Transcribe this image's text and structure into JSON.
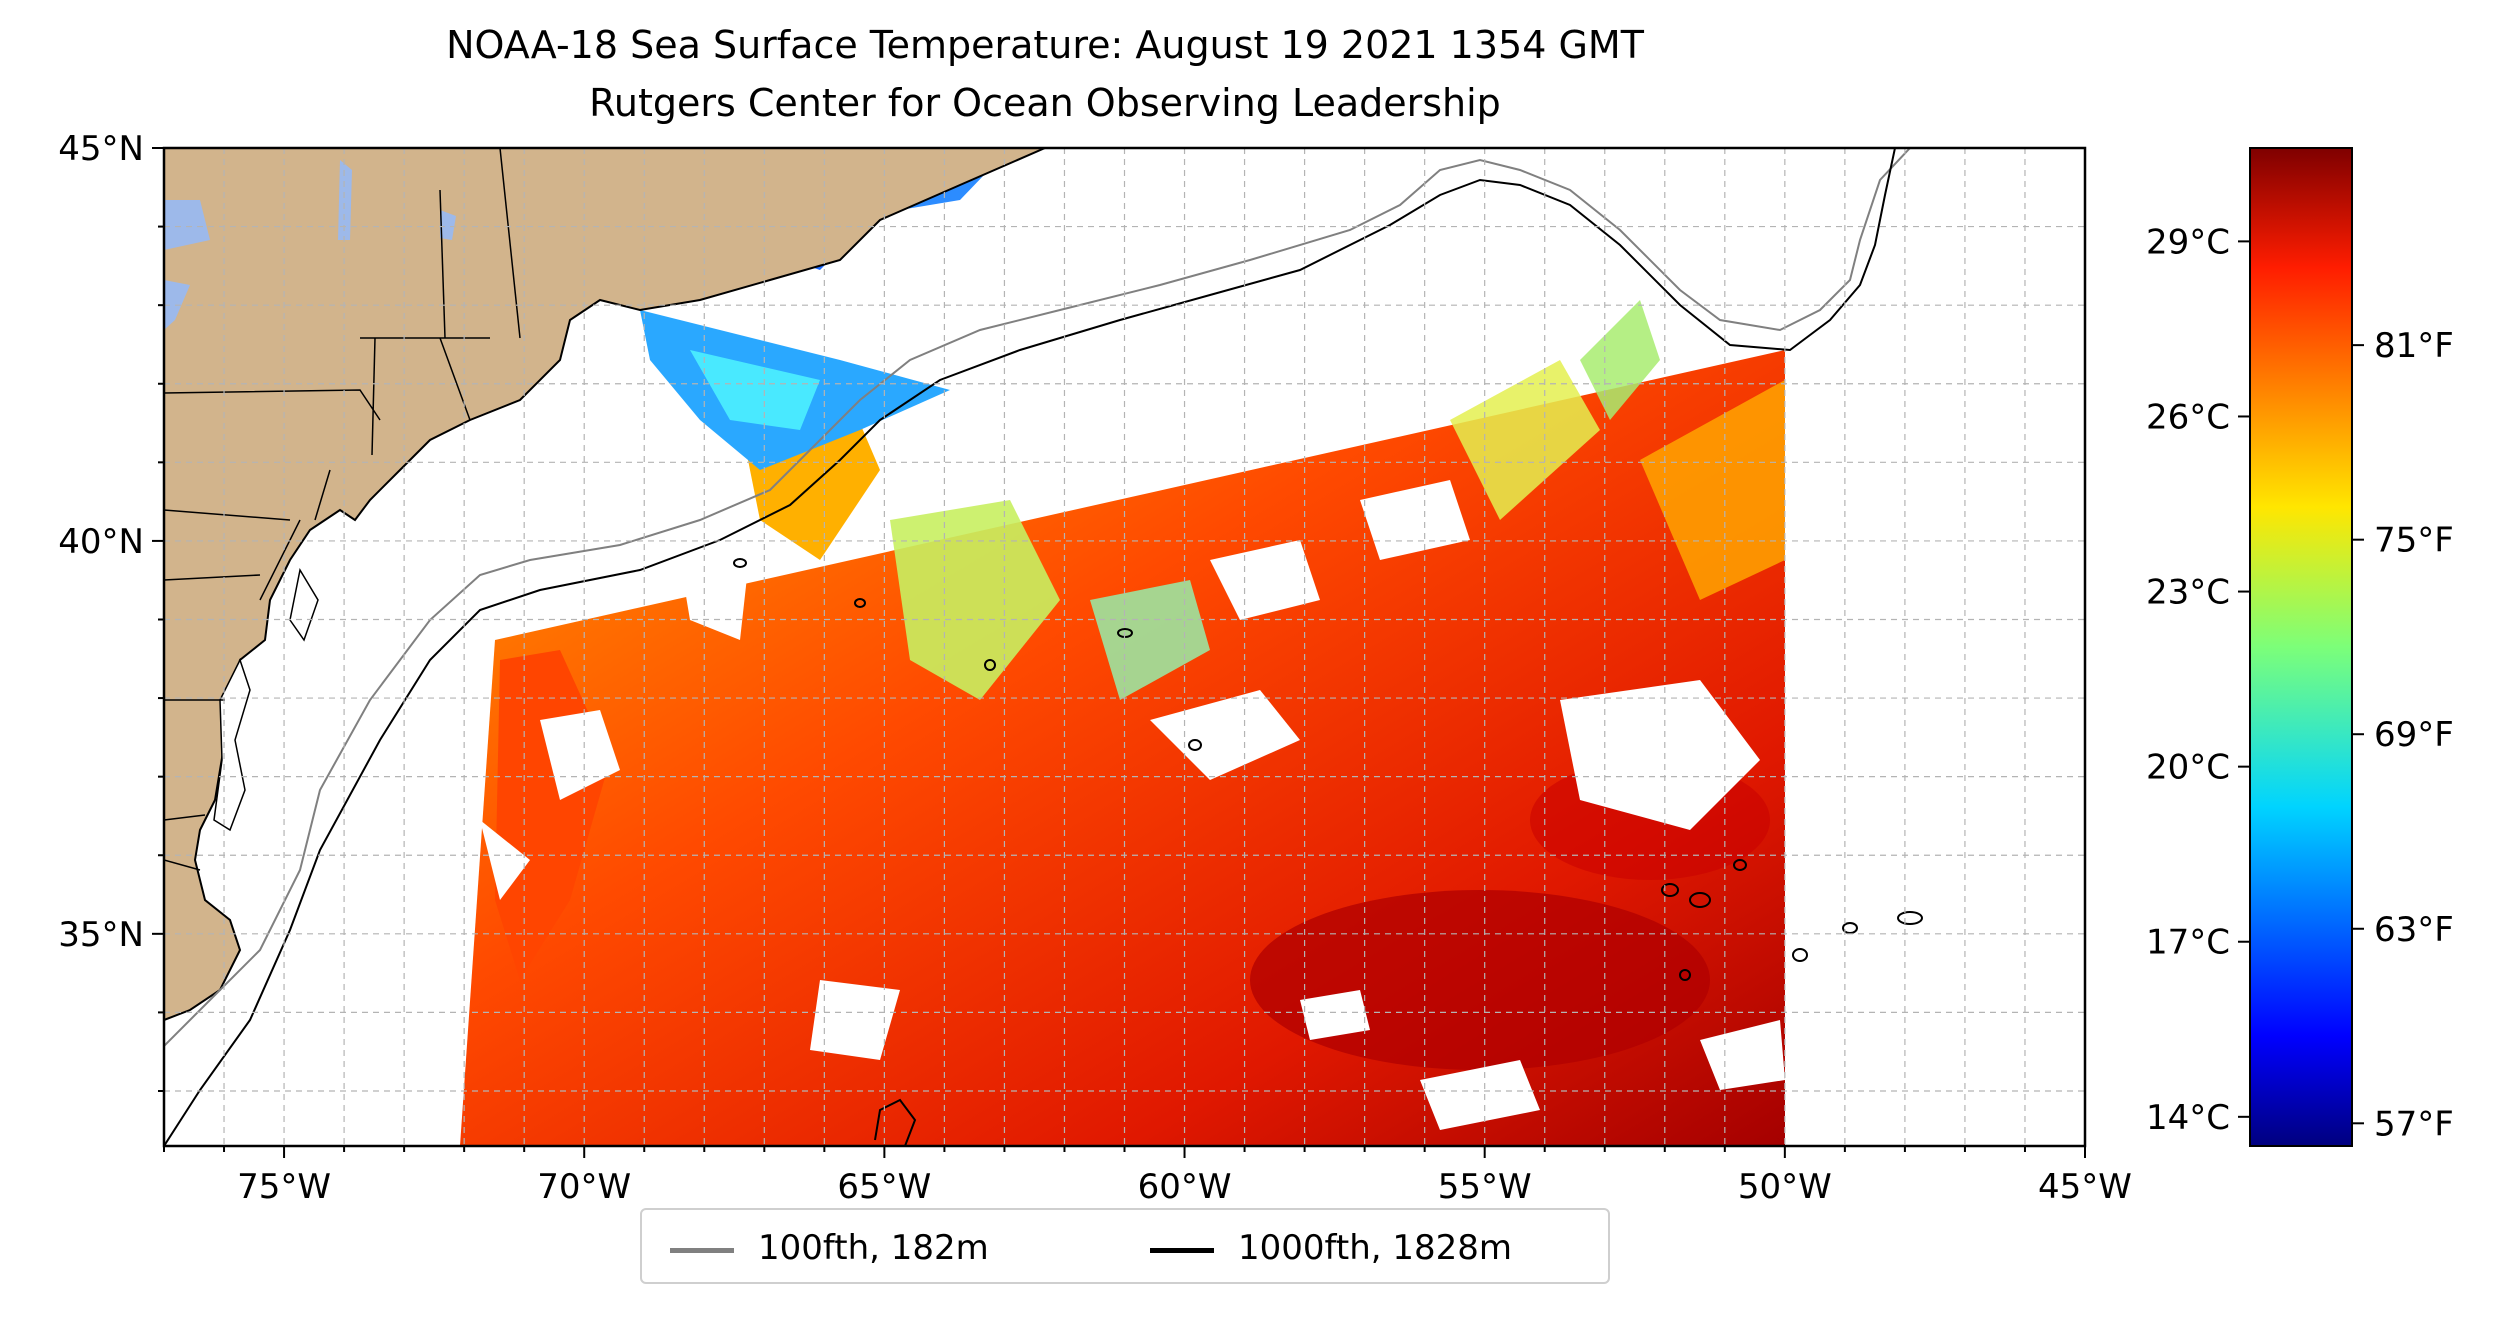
{
  "title": "NOAA-18 Sea Surface Temperature: August 19 2021 1354 GMT",
  "subtitle": "Rutgers Center for Ocean Observing Leadership",
  "map": {
    "extent": {
      "lon_min": -77,
      "lon_max": -45,
      "lat_min": 32.3,
      "lat_max": 45
    },
    "lon_ticks": [
      {
        "value": -75,
        "label": "75°W"
      },
      {
        "value": -70,
        "label": "70°W"
      },
      {
        "value": -65,
        "label": "65°W"
      },
      {
        "value": -60,
        "label": "60°W"
      },
      {
        "value": -55,
        "label": "55°W"
      },
      {
        "value": -50,
        "label": "50°W"
      },
      {
        "value": -45,
        "label": "45°W"
      }
    ],
    "lat_ticks": [
      {
        "value": 35,
        "label": "35°N"
      },
      {
        "value": 40,
        "label": "40°N"
      },
      {
        "value": 45,
        "label": "45°N"
      }
    ],
    "grid": "dashed gray, 1° spacing",
    "colors": {
      "land": "#D2B48C",
      "lakes": "#9DB9EA",
      "isobath_100fth": "#808080",
      "isobath_1000fth": "#000000"
    }
  },
  "legend": {
    "items": [
      {
        "label": "100fth, 182m",
        "color": "#808080"
      },
      {
        "label": "1000fth, 1828m",
        "color": "#000000"
      }
    ]
  },
  "colorbar": {
    "colormap": "jet",
    "celsius_ticks": [
      "29°C",
      "26°C",
      "23°C",
      "20°C",
      "17°C",
      "14°C"
    ],
    "fahrenheit_ticks": [
      "81°F",
      "75°F",
      "69°F",
      "63°F",
      "57°F"
    ]
  }
}
